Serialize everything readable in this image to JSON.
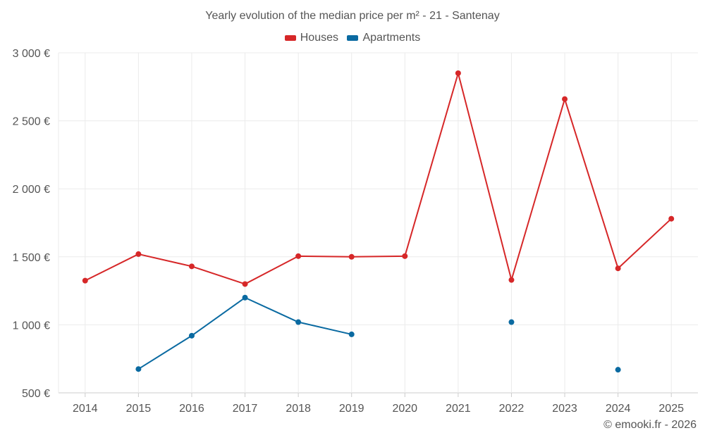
{
  "title": "Yearly evolution of the median price per m² - 21 - Santenay",
  "credit": "© emooki.fr - 2026",
  "legend": {
    "houses": "Houses",
    "apartments": "Apartments"
  },
  "colors": {
    "houses": "#d62728",
    "apartments": "#0a6aa1",
    "grid": "#ebebeb",
    "axis": "#cccccc",
    "text": "#555555"
  },
  "chart_data": {
    "type": "line",
    "title": "Yearly evolution of the median price per m² - 21 - Santenay",
    "xlabel": "",
    "ylabel": "",
    "categories": [
      "2014",
      "2015",
      "2016",
      "2017",
      "2018",
      "2019",
      "2020",
      "2021",
      "2022",
      "2023",
      "2024",
      "2025"
    ],
    "ylim": [
      500,
      3000
    ],
    "yticks": [
      500,
      1000,
      1500,
      2000,
      2500,
      3000
    ],
    "ytick_labels": [
      "500 €",
      "1 000 €",
      "1 500 €",
      "2 000 €",
      "2 500 €",
      "3 000 €"
    ],
    "grid": true,
    "legend_position": "top-center",
    "series": [
      {
        "name": "Houses",
        "key": "houses",
        "values": [
          1325,
          1520,
          1430,
          1300,
          1505,
          1500,
          1505,
          2850,
          1330,
          2660,
          1415,
          1780
        ]
      },
      {
        "name": "Apartments",
        "key": "apartments",
        "values": [
          null,
          675,
          920,
          1200,
          1020,
          930,
          null,
          null,
          1020,
          null,
          670,
          null
        ]
      }
    ]
  }
}
